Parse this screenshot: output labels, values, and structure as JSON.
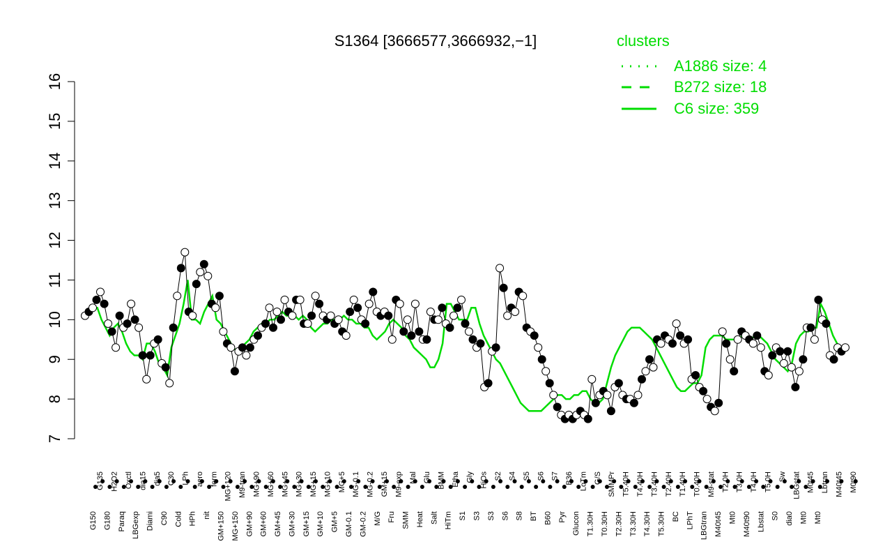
{
  "chart_data": {
    "type": "line",
    "title": "S1364 [3666577,3666932,−1]",
    "xlabel": "",
    "ylabel": "",
    "ylim": [
      7,
      16
    ],
    "yticks": [
      7,
      8,
      9,
      10,
      11,
      12,
      13,
      14,
      15,
      16
    ],
    "xtick_labels_top": [
      "G135",
      "H2O2",
      "Oxctl",
      "dia15",
      "dia5",
      "C30",
      "LPh",
      "aero",
      "ferm",
      "MG+120",
      "M9-tran",
      "MG+90",
      "MG+60",
      "MG+45",
      "MG+30",
      "MG+15",
      "MG+10",
      "MG+5",
      "MG-0.1",
      "MG-0.2",
      "GM+15",
      "M9-exp",
      "Mal",
      "Glu",
      "BMM",
      "Etha",
      "Gly",
      "HiOs",
      "S2",
      "S4",
      "S5",
      "S6",
      "S7",
      "B36",
      "LoTm",
      "G/S",
      "SMMPr",
      "T5.40H",
      "T4.40H",
      "T3.40H",
      "T2.40H",
      "T1.40H",
      "T0.40H",
      "M9-stat",
      "T2.0H",
      "T3.0H",
      "T4.0H",
      "T5.0H",
      "Sw",
      "LBGstat",
      "M0t45",
      "Lbtran",
      "M40t45",
      "M0t90",
      "BI",
      "M0t45",
      "Lbexp"
    ],
    "xtick_labels_bottom": [
      "G150",
      "G180",
      "Paraq",
      "LBGexp",
      "Diami",
      "C90",
      "Cold",
      "HPh",
      "nit",
      "GM+150",
      "MG+150",
      "GM+90",
      "GM+60",
      "GM+45",
      "GM+30",
      "GM+15",
      "GM+10",
      "GM+5",
      "GM-0.1",
      "GM-0.2",
      "M/G",
      "Fru",
      "SMM",
      "Heat",
      "Salt",
      "HiTm",
      "S1",
      "S3",
      "S3",
      "S6",
      "S8",
      "BT",
      "B60",
      "Pyr",
      "Glucon",
      "T1.30H",
      "T0.30H",
      "T2.30H",
      "T3.30H",
      "T4.30H",
      "T5.30H",
      "BC",
      "LPhT",
      "LBGtran",
      "M40t45",
      "Mt0",
      "M40t90",
      "Lbstat",
      "S0",
      "dia0",
      "Mt0",
      "Mt0"
    ],
    "series": [
      {
        "name": "C6 size: 359",
        "style": "solid",
        "color": "#00dd00",
        "values": [
          10.1,
          10.2,
          10.3,
          10.3,
          10.0,
          9.8,
          9.6,
          9.8,
          9.9,
          9.7,
          9.4,
          9.2,
          9.1,
          9.1,
          9.0,
          9.4,
          9.4,
          9.2,
          8.9,
          8.8,
          8.6,
          9.3,
          9.6,
          9.9,
          10.4,
          11.0,
          10.0,
          10.0,
          9.9,
          10.2,
          10.4,
          10.6,
          10.0,
          9.9,
          9.7,
          9.5,
          9.3,
          9.2,
          9.3,
          9.4,
          9.5,
          9.7,
          9.8,
          9.9,
          9.9,
          10.0,
          10.0,
          10.1,
          10.2,
          10.1,
          10.1,
          10.1,
          10.0,
          10.1,
          10.0,
          9.8,
          9.7,
          9.8,
          9.9,
          9.9,
          10.0,
          10.0,
          10.0,
          10.1,
          10.0,
          10.0,
          9.9,
          9.9,
          9.8,
          9.8,
          9.6,
          9.5,
          9.6,
          9.7,
          9.9,
          10.0,
          9.9,
          9.8,
          9.6,
          9.5,
          9.3,
          9.2,
          9.1,
          9.0,
          8.8,
          8.8,
          9.0,
          9.4,
          10.4,
          10.4,
          10.2,
          10.0,
          10.0,
          10.0,
          10.3,
          10.3,
          9.9,
          9.6,
          9.4,
          9.2,
          9.0,
          8.9,
          8.7,
          8.5,
          8.3,
          8.1,
          7.9,
          7.8,
          7.7,
          7.7,
          7.7,
          7.7,
          7.8,
          7.9,
          8.0,
          8.1,
          8.1,
          8.0,
          8.0,
          8.1,
          8.1,
          8.2,
          8.2,
          8.0,
          7.9,
          7.9,
          8.0,
          8.4,
          8.8,
          9.1,
          9.3,
          9.5,
          9.7,
          9.8,
          9.8,
          9.8,
          9.7,
          9.6,
          9.5,
          9.3,
          9.1,
          8.9,
          8.7,
          8.5,
          8.3,
          8.2,
          8.2,
          8.3,
          8.4,
          8.4,
          8.6,
          9.3,
          9.5,
          9.6,
          9.6,
          9.6,
          9.5,
          9.5,
          9.5,
          9.5,
          9.6,
          9.6,
          9.5,
          9.6,
          9.6,
          9.5,
          9.4,
          9.2,
          9.0,
          8.9,
          8.8,
          8.7,
          8.9,
          9.4,
          9.6,
          9.7,
          9.7,
          9.8,
          9.8,
          10.4,
          10.2,
          9.9,
          9.6,
          9.4,
          9.3,
          9.3
        ]
      },
      {
        "name": "B272 size: 18",
        "style": "dashed",
        "color": "#00dd00",
        "values": []
      },
      {
        "name": "A1886 size: 4",
        "style": "dotted",
        "color": "#00dd00",
        "values": []
      },
      {
        "name": "",
        "style": "points",
        "color": "#000000",
        "values": [
          10.1,
          10.2,
          10.3,
          10.5,
          10.7,
          10.4,
          9.9,
          9.7,
          9.3,
          10.1,
          9.8,
          9.9,
          10.4,
          10.0,
          9.8,
          9.1,
          8.5,
          9.1,
          9.4,
          9.5,
          8.9,
          8.8,
          8.4,
          9.8,
          10.6,
          11.3,
          11.7,
          10.2,
          10.1,
          10.9,
          11.2,
          11.4,
          11.1,
          10.4,
          10.3,
          10.6,
          9.7,
          9.4,
          9.3,
          8.7,
          9.2,
          9.3,
          9.1,
          9.3,
          9.5,
          9.6,
          9.8,
          9.9,
          10.3,
          9.8,
          10.2,
          10.0,
          10.5,
          10.2,
          10.1,
          10.5,
          10.5,
          9.9,
          9.9,
          10.1,
          10.6,
          10.4,
          10.1,
          10.0,
          10.1,
          9.9,
          10.0,
          9.7,
          9.6,
          10.2,
          10.5,
          10.3,
          10.0,
          9.9,
          10.4,
          10.7,
          10.2,
          10.1,
          10.2,
          10.1,
          9.5,
          10.5,
          10.4,
          9.7,
          10.0,
          9.6,
          10.4,
          9.7,
          9.5,
          9.5,
          10.2,
          10.0,
          10.0,
          10.3,
          9.9,
          9.8,
          10.1,
          10.3,
          10.5,
          9.9,
          9.7,
          9.5,
          9.3,
          9.4,
          8.3,
          8.4,
          9.2,
          9.3,
          11.3,
          10.8,
          10.1,
          10.3,
          10.2,
          10.7,
          10.6,
          9.8,
          9.7,
          9.6,
          9.3,
          9.0,
          8.7,
          8.4,
          8.1,
          7.8,
          7.6,
          7.5,
          7.6,
          7.5,
          7.6,
          7.7,
          7.6,
          7.5,
          8.5,
          7.9,
          8.1,
          8.2,
          8.1,
          7.7,
          8.3,
          8.4,
          8.1,
          8.0,
          8.0,
          7.9,
          8.1,
          8.5,
          8.7,
          9.0,
          8.8,
          9.5,
          9.4,
          9.6,
          9.5,
          9.4,
          9.9,
          9.6,
          9.4,
          9.5,
          8.5,
          8.6,
          8.3,
          8.2,
          8.0,
          7.8,
          7.7,
          7.9,
          9.7,
          9.4,
          9.0,
          8.7,
          9.5,
          9.7,
          9.6,
          9.5,
          9.4,
          9.6,
          9.3,
          8.7,
          8.6,
          9.1,
          9.3,
          9.2,
          8.9,
          9.2,
          8.8,
          8.3,
          8.7,
          9.0,
          9.8,
          9.8,
          9.5,
          10.5,
          10.0,
          9.9,
          9.1,
          9.0,
          9.3,
          9.2,
          9.3
        ]
      }
    ],
    "legend": {
      "title": "clusters",
      "placement": "top-right",
      "entries": [
        {
          "label": "A1886 size: 4",
          "style": "dotted"
        },
        {
          "label": "B272 size: 18",
          "style": "dashed"
        },
        {
          "label": "C6 size: 359",
          "style": "solid"
        }
      ]
    },
    "grid": false,
    "colors": {
      "cluster": "#00dd00",
      "points": "#000000",
      "axis": "#000000"
    }
  }
}
